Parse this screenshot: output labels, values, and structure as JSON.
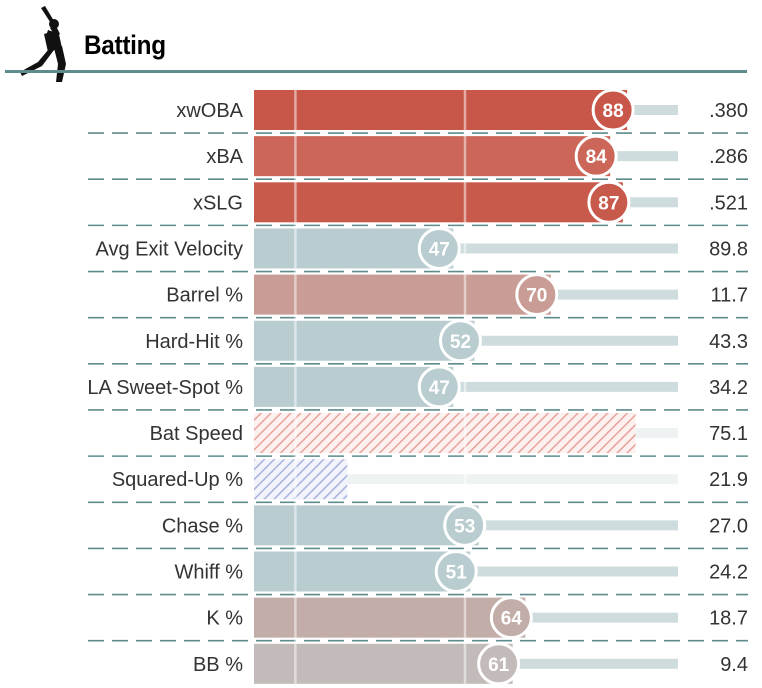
{
  "section": {
    "title": "Batting"
  },
  "colors": {
    "header_rule": "#5e8c8c",
    "divider": "#5e8c8c",
    "track": "#cfdcdd",
    "track_faint": "#eef2f2"
  },
  "icons": {
    "header": "baseball-batter-icon"
  },
  "chart_data": {
    "type": "bar",
    "orientation": "horizontal",
    "title": "Batting",
    "xlim": [
      0,
      100
    ],
    "categories": [
      "xwOBA",
      "xBA",
      "xSLG",
      "Avg Exit Velocity",
      "Barrel %",
      "Hard-Hit %",
      "LA Sweet-Spot %",
      "Bat Speed",
      "Squared-Up %",
      "Chase %",
      "Whiff %",
      "K %",
      "BB %"
    ],
    "percentiles": [
      88,
      84,
      87,
      47,
      70,
      52,
      47,
      null,
      null,
      53,
      51,
      64,
      61
    ],
    "percentile_labels": [
      "88",
      "84",
      "87",
      "47",
      "70",
      "52",
      "47",
      "",
      "",
      "53",
      "51",
      "64",
      "61"
    ],
    "bar_values": [
      88,
      84,
      87,
      47,
      70,
      52,
      47,
      90,
      22,
      53,
      51,
      64,
      61
    ],
    "stat_values": [
      ".380",
      ".286",
      ".521",
      "89.8",
      "11.7",
      "43.3",
      "34.2",
      "75.1",
      "21.9",
      "27.0",
      "24.2",
      "18.7",
      "9.4"
    ],
    "bar_colors": [
      "#c8574a",
      "#cb6658",
      "#c85a4c",
      "#b9cdd0",
      "#c99d95",
      "#b9cdd0",
      "#b9cdd0",
      "#eaa9a4",
      "#aab5dc",
      "#b9cdd0",
      "#b9cdd0",
      "#c3ada8",
      "#c3bbb9"
    ],
    "hatched": [
      false,
      false,
      false,
      false,
      false,
      false,
      false,
      true,
      true,
      false,
      false,
      false,
      false
    ],
    "gridlines": [
      10,
      50
    ],
    "grid": true,
    "legend": "none"
  }
}
